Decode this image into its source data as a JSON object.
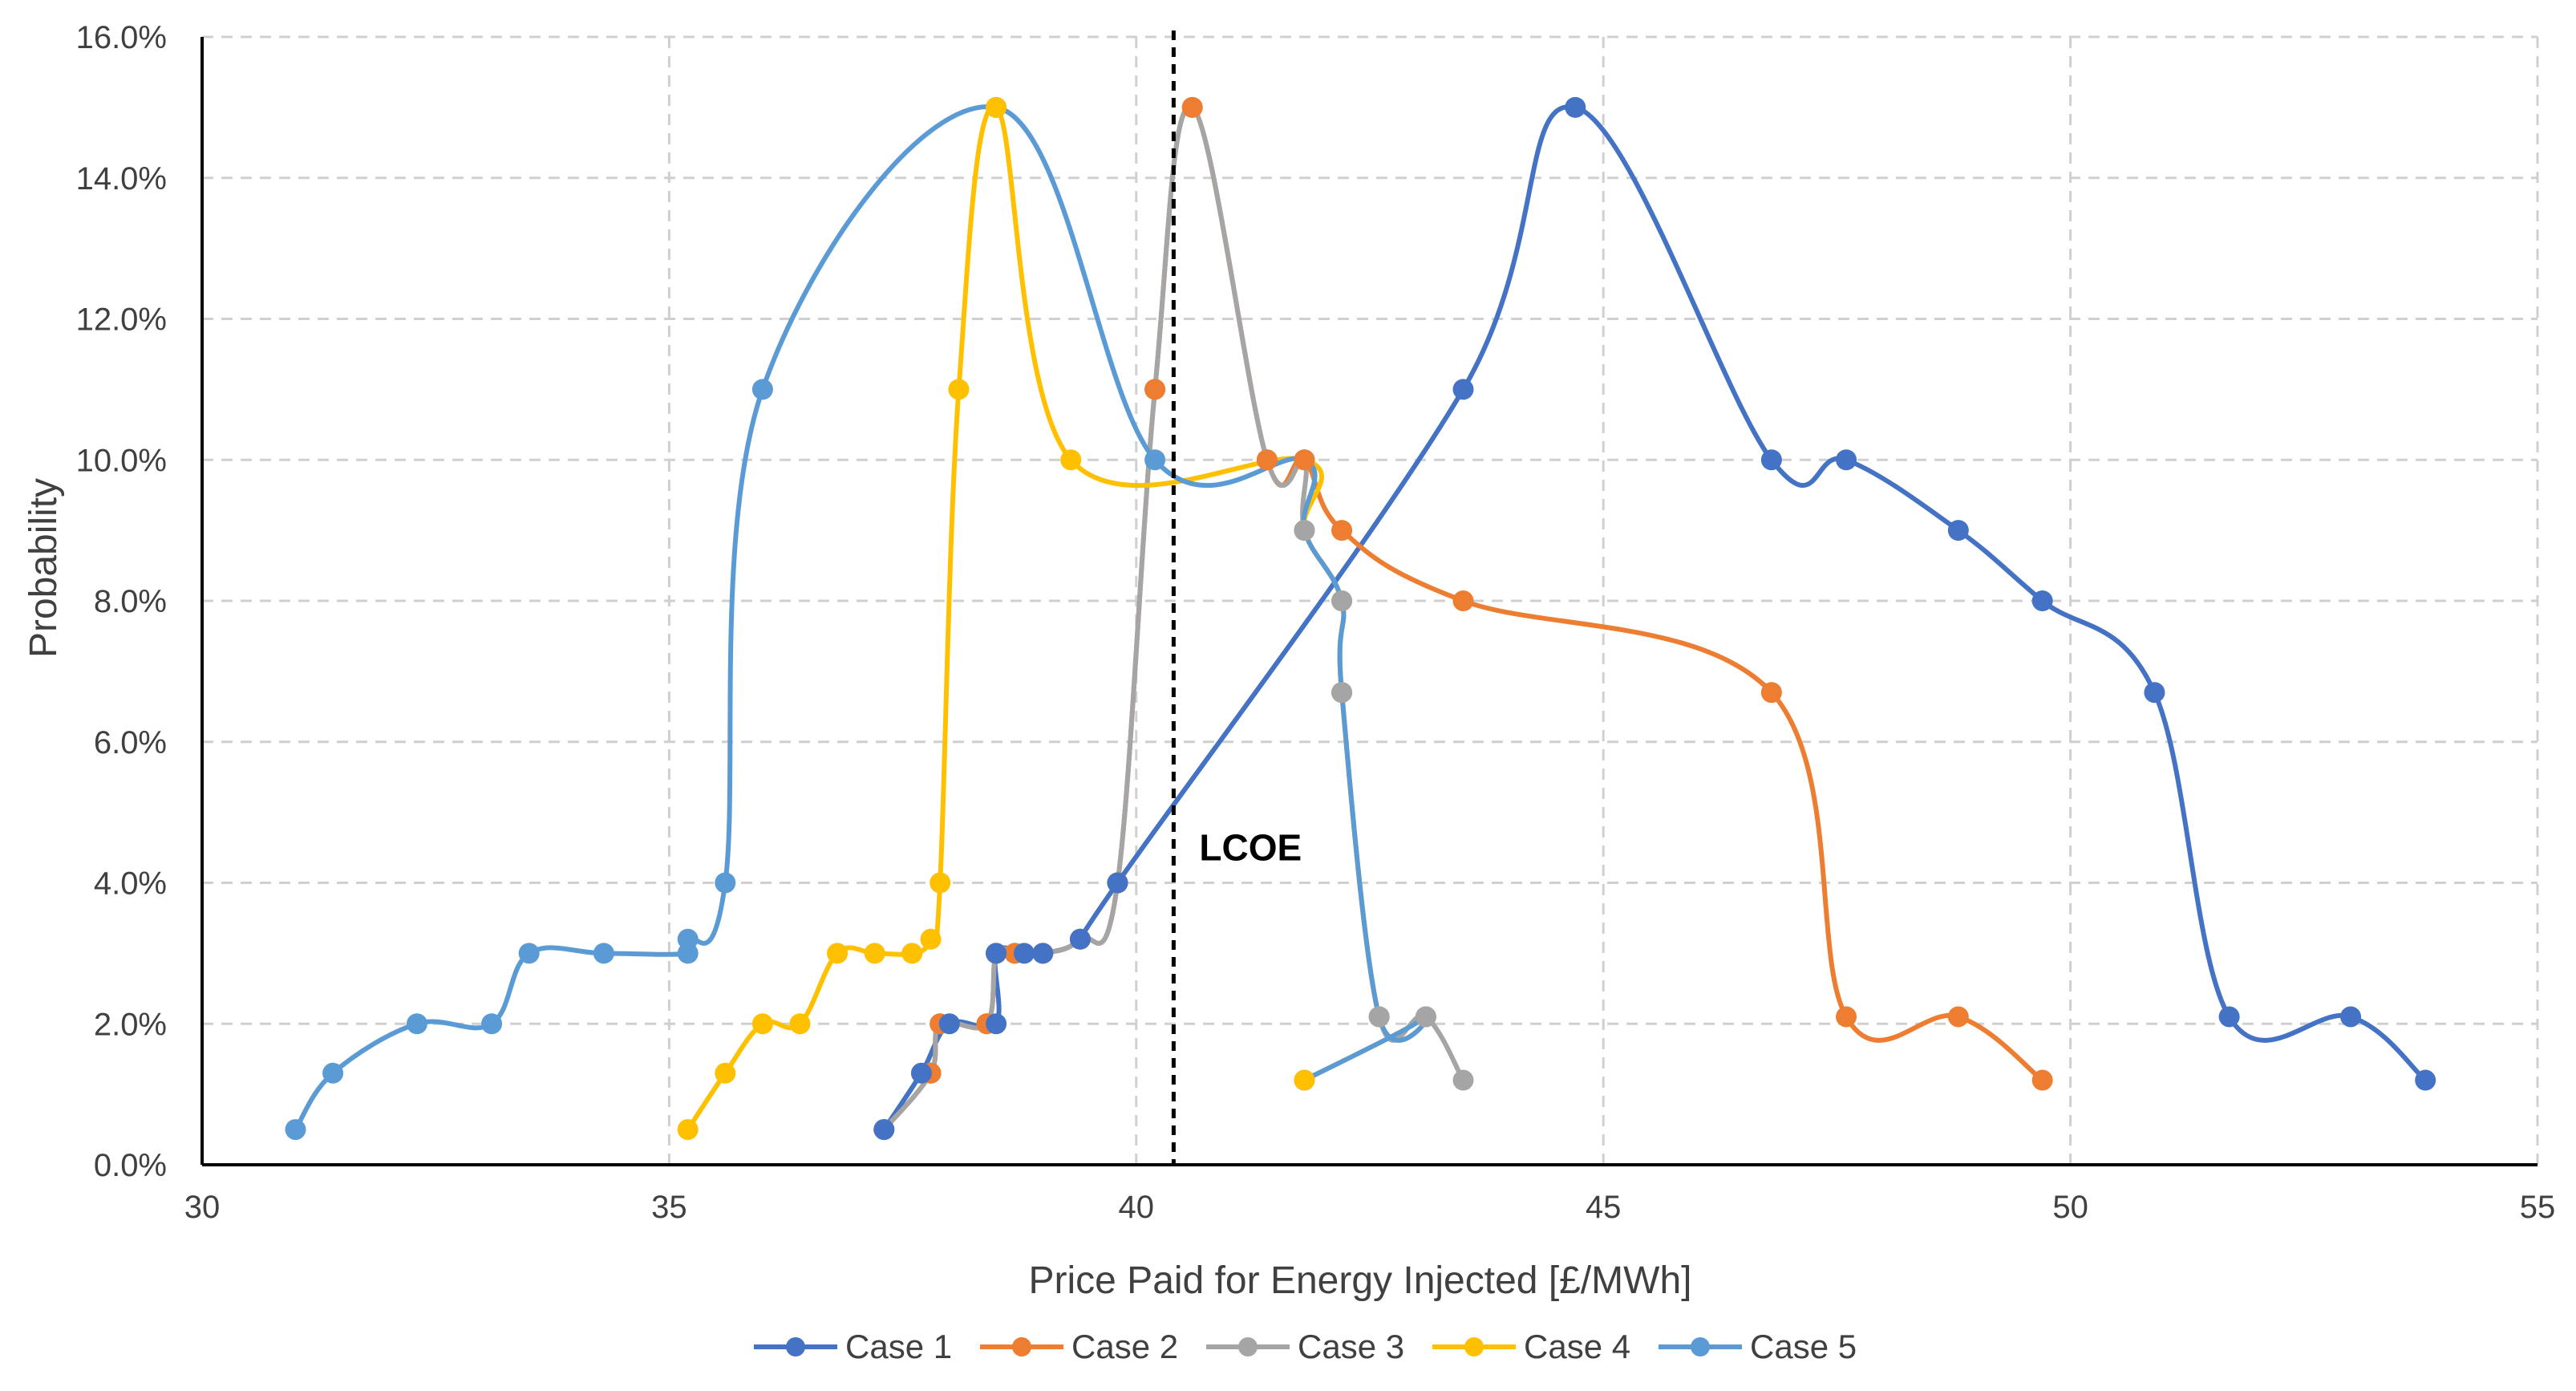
{
  "chart_data": {
    "type": "line",
    "title": "",
    "xlabel": "Price Paid for Energy Injected [£/MWh]",
    "ylabel": "Probability",
    "xlim": [
      30,
      55
    ],
    "ylim": [
      0,
      16
    ],
    "x_ticks": [
      30,
      35,
      40,
      45,
      50,
      55
    ],
    "y_ticks": [
      0,
      2,
      4,
      6,
      8,
      10,
      12,
      14,
      16
    ],
    "x_tick_labels": [
      "30",
      "35",
      "40",
      "45",
      "50",
      "55"
    ],
    "y_tick_labels": [
      "0.0%",
      "2.0%",
      "4.0%",
      "6.0%",
      "8.0%",
      "10.0%",
      "12.0%",
      "14.0%",
      "16.0%"
    ],
    "grid": true,
    "legend_position": "bottom",
    "vline": {
      "x": 40.4,
      "label": "LCOE",
      "color": "#000000"
    },
    "series": [
      {
        "name": "Case 1",
        "color": "#4472C4",
        "points": [
          [
            37.3,
            0.5
          ],
          [
            37.7,
            1.3
          ],
          [
            38.0,
            2.0
          ],
          [
            38.5,
            2.0
          ],
          [
            38.5,
            3.0
          ],
          [
            38.8,
            3.0
          ],
          [
            39.0,
            3.0
          ],
          [
            39.4,
            3.2
          ],
          [
            39.8,
            4.0
          ],
          [
            43.5,
            11.0
          ],
          [
            44.7,
            15.0
          ],
          [
            46.8,
            10.0
          ],
          [
            47.6,
            10.0
          ],
          [
            48.8,
            9.0
          ],
          [
            49.7,
            8.0
          ],
          [
            50.9,
            6.7
          ],
          [
            51.7,
            2.1
          ],
          [
            53.0,
            2.1
          ],
          [
            53.8,
            1.2
          ]
        ]
      },
      {
        "name": "Case 2",
        "color": "#ED7D31",
        "points": [
          [
            37.3,
            0.5
          ],
          [
            37.8,
            1.3
          ],
          [
            37.9,
            2.0
          ],
          [
            38.4,
            2.0
          ],
          [
            38.5,
            3.0
          ],
          [
            38.7,
            3.0
          ],
          [
            39.0,
            3.0
          ],
          [
            39.4,
            3.2
          ],
          [
            39.8,
            4.0
          ],
          [
            40.2,
            11.0
          ],
          [
            40.6,
            15.0
          ],
          [
            41.4,
            10.0
          ],
          [
            41.8,
            10.0
          ],
          [
            42.2,
            9.0
          ],
          [
            43.5,
            8.0
          ],
          [
            46.8,
            6.7
          ],
          [
            47.6,
            2.1
          ],
          [
            48.8,
            2.1
          ],
          [
            49.7,
            1.2
          ]
        ]
      },
      {
        "name": "Case 3",
        "color": "#A5A5A5",
        "points": [
          [
            37.3,
            0.5
          ],
          [
            37.8,
            1.3
          ],
          [
            37.9,
            2.0
          ],
          [
            38.4,
            2.0
          ],
          [
            38.5,
            3.0
          ],
          [
            38.7,
            3.0
          ],
          [
            39.0,
            3.0
          ],
          [
            39.4,
            3.2
          ],
          [
            39.8,
            4.0
          ],
          [
            40.2,
            11.0
          ],
          [
            40.6,
            15.0
          ],
          [
            41.4,
            10.0
          ],
          [
            41.8,
            10.0
          ],
          [
            41.8,
            9.0
          ],
          [
            42.2,
            8.0
          ],
          [
            42.2,
            6.7
          ],
          [
            42.6,
            2.1
          ],
          [
            43.1,
            2.1
          ],
          [
            43.5,
            1.2
          ]
        ]
      },
      {
        "name": "Case 4",
        "color": "#FFC000",
        "points": [
          [
            35.2,
            0.5
          ],
          [
            35.6,
            1.3
          ],
          [
            36.0,
            2.0
          ],
          [
            36.4,
            2.0
          ],
          [
            36.8,
            3.0
          ],
          [
            37.2,
            3.0
          ],
          [
            37.6,
            3.0
          ],
          [
            37.8,
            3.2
          ],
          [
            37.9,
            4.0
          ],
          [
            38.1,
            11.0
          ],
          [
            38.5,
            15.0
          ],
          [
            39.3,
            10.0
          ],
          [
            41.8,
            10.0
          ],
          [
            41.8,
            9.0
          ],
          [
            42.2,
            8.0
          ],
          [
            42.2,
            6.7
          ],
          [
            42.6,
            2.1
          ],
          [
            43.1,
            2.1
          ],
          [
            41.8,
            1.2
          ]
        ]
      },
      {
        "name": "Case 5",
        "color": "#5B9BD5",
        "points": [
          [
            31.0,
            0.5
          ],
          [
            31.4,
            1.3
          ],
          [
            32.3,
            2.0
          ],
          [
            33.1,
            2.0
          ],
          [
            33.5,
            3.0
          ],
          [
            34.3,
            3.0
          ],
          [
            35.2,
            3.0
          ],
          [
            35.2,
            3.2
          ],
          [
            35.6,
            4.0
          ],
          [
            36.0,
            11.0
          ],
          [
            38.5,
            15.0
          ],
          [
            40.2,
            10.0
          ],
          [
            41.8,
            10.0
          ],
          [
            41.8,
            9.0
          ],
          [
            42.2,
            8.0
          ],
          [
            42.2,
            6.7
          ],
          [
            42.6,
            2.1
          ],
          [
            43.1,
            2.1
          ],
          [
            41.8,
            1.2
          ]
        ]
      }
    ]
  }
}
